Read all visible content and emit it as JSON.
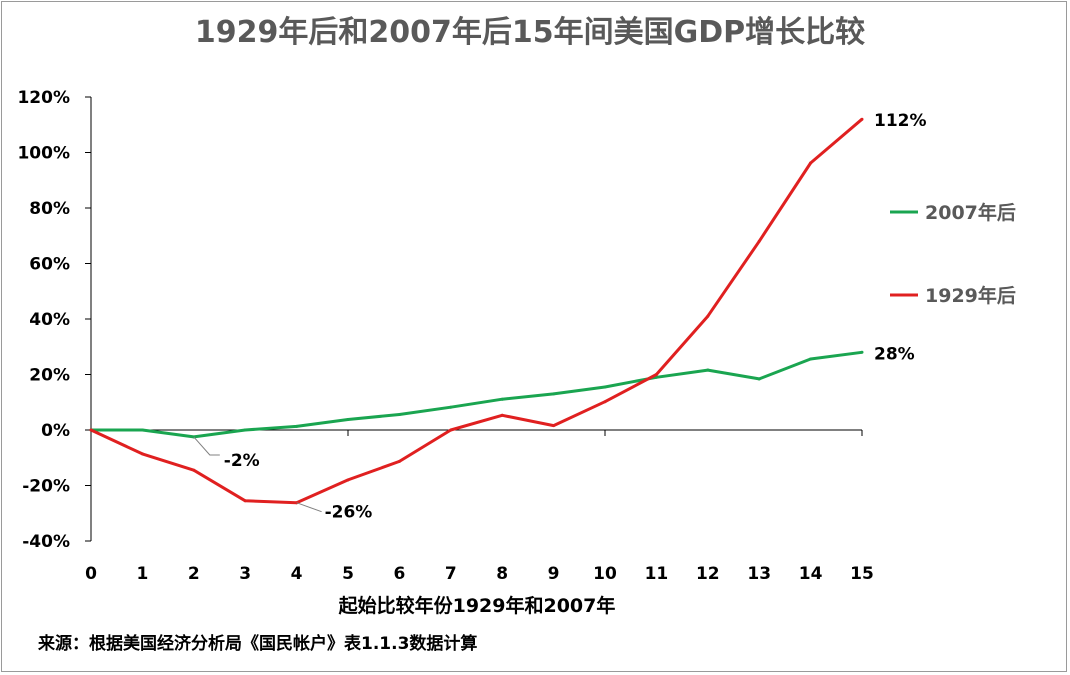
{
  "chart_data": {
    "type": "line",
    "title": "1929年后和2007年后15年间美国GDP增长比较",
    "xlabel": "起始比较年份1929年和2007年",
    "ylabel": "",
    "x": [
      0,
      1,
      2,
      3,
      4,
      5,
      6,
      7,
      8,
      9,
      10,
      11,
      12,
      13,
      14,
      15
    ],
    "x_tick_labels": [
      "0",
      "1",
      "2",
      "3",
      "4",
      "5",
      "6",
      "7",
      "8",
      "9",
      "10",
      "11",
      "12",
      "13",
      "14",
      "15"
    ],
    "ylim": [
      -40,
      120
    ],
    "y_ticks": [
      -40,
      -20,
      0,
      20,
      40,
      60,
      80,
      100,
      120
    ],
    "y_tick_labels": [
      "-40%",
      "-20%",
      "0%",
      "20%",
      "40%",
      "60%",
      "80%",
      "100%",
      "120%"
    ],
    "y_unit": "%",
    "grid": false,
    "legend_position": "right",
    "series": [
      {
        "name": "2007年后",
        "color": "#1aa550",
        "values": [
          0,
          0,
          -2.5,
          0,
          1.3,
          3.8,
          5.6,
          8.2,
          11.1,
          13,
          15.5,
          19,
          21.6,
          18.4,
          25.6,
          28
        ]
      },
      {
        "name": "1929年后",
        "color": "#e02020",
        "values": [
          0,
          -8.6,
          -14.5,
          -25.5,
          -26.2,
          -18,
          -11.3,
          0,
          5.3,
          1.6,
          10.2,
          20,
          41,
          68,
          96.2,
          112
        ]
      }
    ],
    "annotations": [
      {
        "series": 0,
        "index": 2,
        "text": "-2%"
      },
      {
        "series": 1,
        "index": 4,
        "text": "-26%"
      },
      {
        "series": 1,
        "index": 15,
        "text": "112%"
      },
      {
        "series": 0,
        "index": 15,
        "text": "28%"
      }
    ]
  },
  "footer": {
    "source": "来源：根据美国经济分析局《国民帐户》表1.1.3数据计算"
  }
}
